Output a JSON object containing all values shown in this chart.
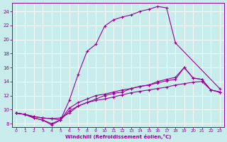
{
  "xlabel": "Windchill (Refroidissement éolien,°C)",
  "bg_color": "#c8ecec",
  "grid_color": "#b0d8d8",
  "line_color": "#990099",
  "xlim": [
    -0.5,
    23.5
  ],
  "ylim": [
    7.5,
    25.2
  ],
  "xticks": [
    0,
    1,
    2,
    3,
    4,
    5,
    6,
    7,
    8,
    9,
    10,
    11,
    12,
    13,
    14,
    15,
    16,
    17,
    18,
    19,
    20,
    21,
    22,
    23
  ],
  "yticks": [
    8,
    10,
    12,
    14,
    16,
    18,
    20,
    22,
    24
  ],
  "curve1_x": [
    0,
    1,
    2,
    3,
    4,
    5,
    6,
    7,
    8,
    9,
    10,
    11,
    12,
    13,
    14,
    15,
    16,
    17,
    18,
    23
  ],
  "curve1_y": [
    9.5,
    9.3,
    9.0,
    8.8,
    8.7,
    8.5,
    11.3,
    15.0,
    18.3,
    19.3,
    21.9,
    22.8,
    23.2,
    23.5,
    24.0,
    24.3,
    24.7,
    24.5,
    19.5,
    13.0
  ],
  "curve2_x": [
    0,
    1,
    2,
    3,
    4,
    5,
    6,
    7,
    8,
    9,
    10,
    11,
    12,
    13,
    14,
    15,
    16,
    17,
    18,
    19,
    20,
    21,
    22,
    23
  ],
  "curve2_y": [
    9.5,
    9.3,
    9.0,
    8.8,
    8.7,
    8.8,
    9.5,
    10.5,
    11.0,
    11.3,
    11.5,
    11.8,
    12.1,
    12.4,
    12.6,
    12.8,
    13.0,
    13.2,
    13.5,
    13.7,
    13.9,
    14.0,
    12.8,
    12.5
  ],
  "curve3_x": [
    0,
    1,
    2,
    3,
    4,
    5,
    6,
    7,
    8,
    9,
    10,
    11,
    12,
    13,
    14,
    15,
    16,
    17,
    18,
    19,
    20,
    21,
    22,
    23
  ],
  "curve3_y": [
    9.5,
    9.3,
    8.8,
    8.5,
    8.0,
    8.5,
    10.2,
    11.0,
    11.5,
    12.0,
    12.2,
    12.5,
    12.8,
    13.0,
    13.3,
    13.5,
    13.8,
    14.1,
    14.3,
    16.0,
    14.5,
    14.3,
    12.8,
    12.5
  ],
  "curve4_x": [
    0,
    1,
    2,
    3,
    4,
    5,
    6,
    7,
    8,
    9,
    10,
    11,
    12,
    13,
    14,
    15,
    16,
    17,
    18,
    19,
    20,
    21,
    22,
    23
  ],
  "curve4_y": [
    9.5,
    9.3,
    8.8,
    8.5,
    7.8,
    8.5,
    9.8,
    10.5,
    11.0,
    11.5,
    12.0,
    12.3,
    12.5,
    13.0,
    13.3,
    13.5,
    14.0,
    14.3,
    14.6,
    16.0,
    14.5,
    14.3,
    12.8,
    12.5
  ]
}
